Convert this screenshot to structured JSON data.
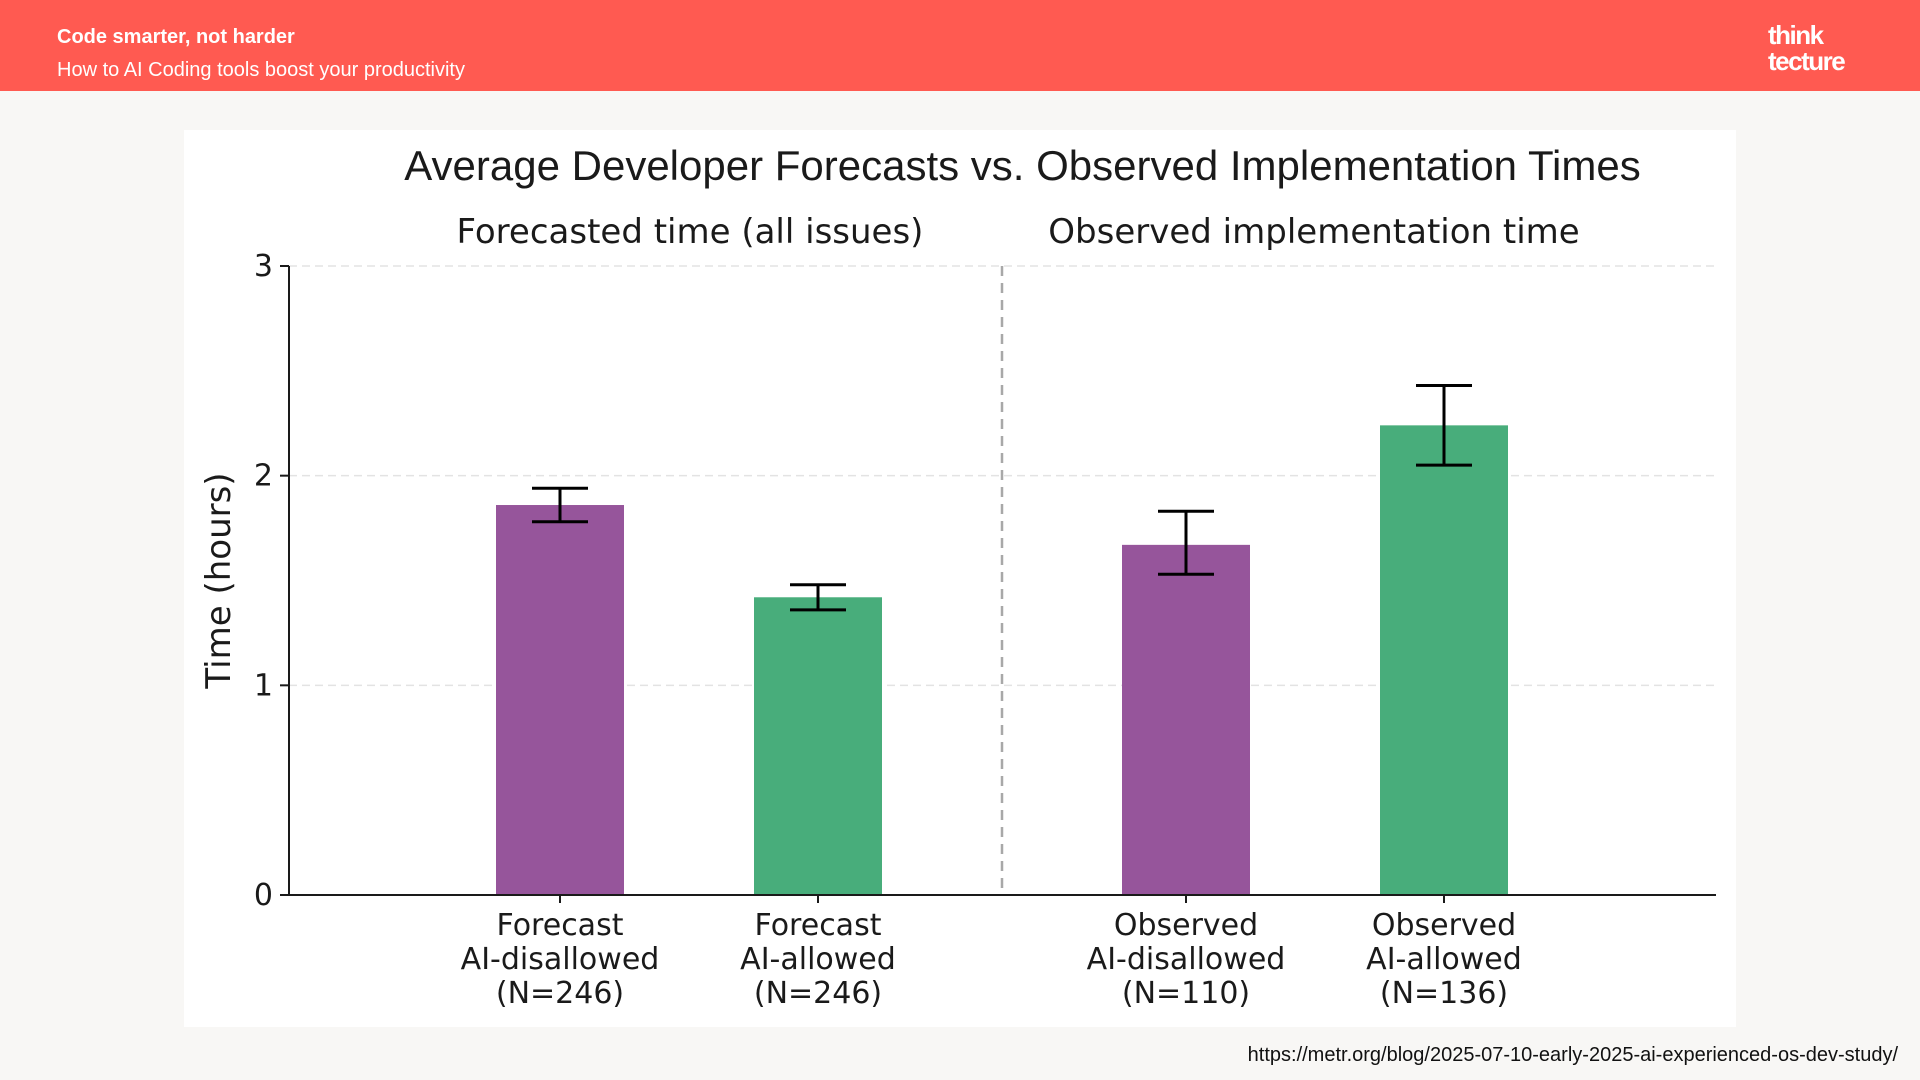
{
  "header": {
    "title": "Code smarter, not harder",
    "subtitle": "How to AI Coding tools boost your productivity"
  },
  "logo": {
    "line1": "think",
    "line2": "tecture"
  },
  "source_url": "https://metr.org/blog/2025-07-10-early-2025-ai-experienced-os-dev-study/",
  "colors": {
    "header_bg": "#ff5a51",
    "ai_disallowed": "#96559b",
    "ai_allowed": "#48ad7b"
  },
  "chart_data": {
    "type": "bar",
    "title": "Average Developer Forecasts vs. Observed Implementation Times",
    "ylabel": "Time (hours)",
    "ylim": [
      0,
      3
    ],
    "yticks": [
      0,
      1,
      2,
      3
    ],
    "grid": true,
    "panels": [
      {
        "label": "Forecasted time (all issues)"
      },
      {
        "label": "Observed implementation time"
      }
    ],
    "categories": [
      {
        "lines": [
          "Forecast",
          "AI-disallowed",
          "(N=246)"
        ],
        "value": 1.86,
        "err_low": 1.78,
        "err_high": 1.94,
        "group": "ai_disallowed"
      },
      {
        "lines": [
          "Forecast",
          "AI-allowed",
          "(N=246)"
        ],
        "value": 1.42,
        "err_low": 1.36,
        "err_high": 1.48,
        "group": "ai_allowed"
      },
      {
        "lines": [
          "Observed",
          "AI-disallowed",
          "(N=110)"
        ],
        "value": 1.67,
        "err_low": 1.53,
        "err_high": 1.83,
        "group": "ai_disallowed"
      },
      {
        "lines": [
          "Observed",
          "AI-allowed",
          "(N=136)"
        ],
        "value": 2.24,
        "err_low": 2.05,
        "err_high": 2.43,
        "group": "ai_allowed"
      }
    ]
  }
}
